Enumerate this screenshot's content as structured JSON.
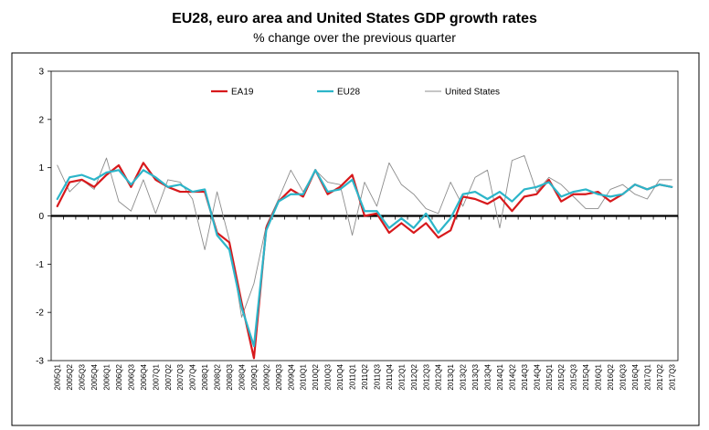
{
  "title": "EU28, euro area and United States GDP growth rates",
  "subtitle": "% change over the previous quarter",
  "colors": {
    "ea19": "#d7191c",
    "eu28": "#2cb5c9",
    "us": "#8c8c8c",
    "zero_line": "#000000"
  },
  "chart_data": {
    "type": "line",
    "title": "EU28, euro area and United States GDP growth rates",
    "subtitle": "% change over the previous quarter",
    "xlabel": "",
    "ylabel": "",
    "ylim": [
      -3,
      3
    ],
    "yticks": [
      3,
      2,
      1,
      0,
      -1,
      -2,
      -3
    ],
    "grid": false,
    "legend": "top",
    "categories": [
      "2005Q1",
      "2005Q2",
      "2005Q3",
      "2005Q4",
      "2006Q1",
      "2006Q2",
      "2006Q3",
      "2006Q4",
      "2007Q1",
      "2007Q2",
      "2007Q3",
      "2007Q4",
      "2008Q1",
      "2008Q2",
      "2008Q3",
      "2008Q4",
      "2009Q1",
      "2009Q2",
      "2009Q3",
      "2009Q4",
      "2010Q1",
      "2010Q2",
      "2010Q3",
      "2010Q4",
      "2011Q1",
      "2011Q2",
      "2011Q3",
      "2011Q4",
      "2012Q1",
      "2012Q2",
      "2012Q3",
      "2012Q4",
      "2013Q1",
      "2013Q2",
      "2013Q3",
      "2013Q4",
      "2014Q1",
      "2014Q2",
      "2014Q3",
      "2014Q4",
      "2015Q1",
      "2015Q2",
      "2015Q3",
      "2015Q4",
      "2016Q1",
      "2016Q2",
      "2016Q3",
      "2016Q4",
      "2017Q1",
      "2017Q2",
      "2017Q3"
    ],
    "series": [
      {
        "name": "EA19",
        "key": "ea19",
        "width": 2.2,
        "values": [
          0.2,
          0.7,
          0.75,
          0.6,
          0.85,
          1.05,
          0.6,
          1.1,
          0.75,
          0.6,
          0.5,
          0.5,
          0.5,
          -0.35,
          -0.55,
          -1.8,
          -2.95,
          -0.25,
          0.3,
          0.55,
          0.4,
          0.95,
          0.45,
          0.6,
          0.85,
          0.0,
          0.05,
          -0.35,
          -0.15,
          -0.35,
          -0.15,
          -0.45,
          -0.3,
          0.4,
          0.35,
          0.25,
          0.4,
          0.1,
          0.4,
          0.45,
          0.75,
          0.3,
          0.45,
          0.45,
          0.5,
          0.3,
          0.45,
          0.65,
          0.55,
          0.65,
          0.6
        ]
      },
      {
        "name": "EU28",
        "key": "eu28",
        "width": 2.2,
        "values": [
          0.35,
          0.8,
          0.85,
          0.75,
          0.9,
          0.95,
          0.65,
          0.95,
          0.8,
          0.6,
          0.65,
          0.5,
          0.55,
          -0.4,
          -0.7,
          -1.9,
          -2.7,
          -0.3,
          0.3,
          0.45,
          0.45,
          0.95,
          0.5,
          0.55,
          0.75,
          0.1,
          0.1,
          -0.25,
          -0.05,
          -0.25,
          0.05,
          -0.35,
          -0.05,
          0.45,
          0.5,
          0.35,
          0.5,
          0.3,
          0.55,
          0.6,
          0.7,
          0.4,
          0.5,
          0.55,
          0.45,
          0.4,
          0.45,
          0.65,
          0.55,
          0.65,
          0.6
        ]
      },
      {
        "name": "United States",
        "key": "us",
        "width": 0.9,
        "values": [
          1.05,
          0.5,
          0.75,
          0.55,
          1.2,
          0.3,
          0.1,
          0.75,
          0.05,
          0.75,
          0.7,
          0.35,
          -0.7,
          0.5,
          -0.5,
          -2.1,
          -1.4,
          -0.2,
          0.35,
          0.95,
          0.5,
          0.95,
          0.7,
          0.65,
          -0.4,
          0.7,
          0.2,
          1.1,
          0.65,
          0.45,
          0.15,
          0.05,
          0.7,
          0.2,
          0.8,
          0.95,
          -0.25,
          1.15,
          1.25,
          0.5,
          0.8,
          0.65,
          0.4,
          0.15,
          0.15,
          0.55,
          0.65,
          0.45,
          0.35,
          0.75,
          0.75
        ]
      }
    ]
  }
}
